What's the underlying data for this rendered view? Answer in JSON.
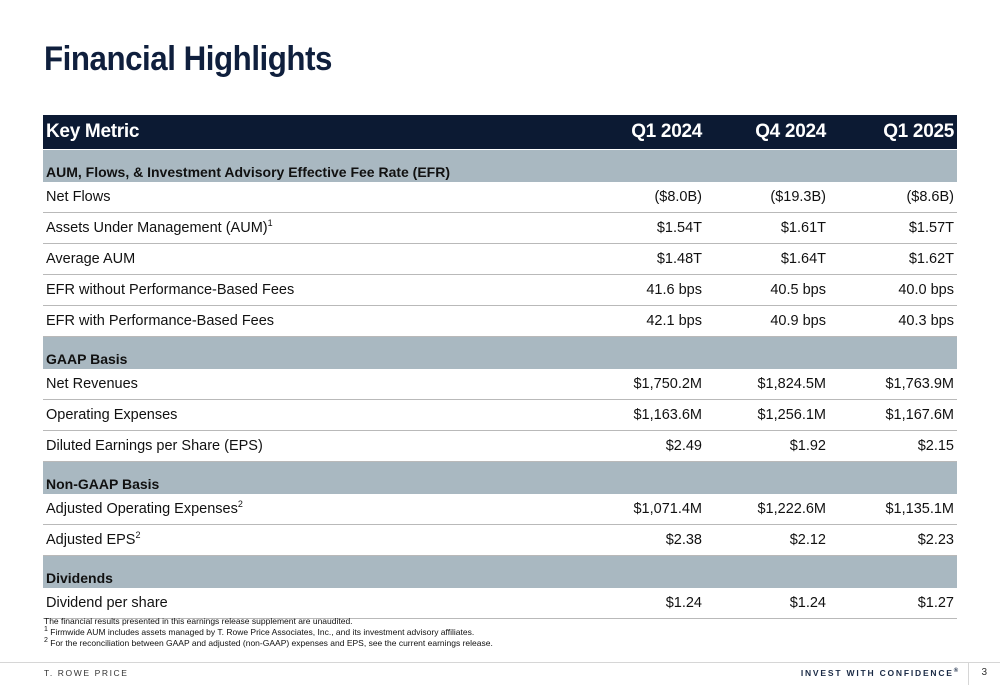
{
  "title": "Financial Highlights",
  "table": {
    "headers": [
      "Key Metric",
      "Q1 2024",
      "Q4 2024",
      "Q1 2025"
    ],
    "sections": [
      {
        "label": "AUM, Flows, & Investment Advisory Effective Fee Rate (EFR)",
        "rows": [
          {
            "label": "Net Flows",
            "sup": "",
            "values": [
              "($8.0B)",
              "($19.3B)",
              "($8.6B)"
            ]
          },
          {
            "label": "Assets Under Management (AUM)",
            "sup": "1",
            "values": [
              "$1.54T",
              "$1.61T",
              "$1.57T"
            ]
          },
          {
            "label": "Average AUM",
            "sup": "",
            "values": [
              "$1.48T",
              "$1.64T",
              "$1.62T"
            ]
          },
          {
            "label": "EFR without Performance-Based Fees",
            "sup": "",
            "values": [
              "41.6 bps",
              "40.5 bps",
              "40.0 bps"
            ]
          },
          {
            "label": "EFR with Performance-Based Fees",
            "sup": "",
            "values": [
              "42.1 bps",
              "40.9 bps",
              "40.3 bps"
            ]
          }
        ]
      },
      {
        "label": "GAAP Basis",
        "rows": [
          {
            "label": "Net Revenues",
            "sup": "",
            "values": [
              "$1,750.2M",
              "$1,824.5M",
              "$1,763.9M"
            ]
          },
          {
            "label": "Operating Expenses",
            "sup": "",
            "values": [
              "$1,163.6M",
              "$1,256.1M",
              "$1,167.6M"
            ]
          },
          {
            "label": "Diluted Earnings per Share (EPS)",
            "sup": "",
            "values": [
              "$2.49",
              "$1.92",
              "$2.15"
            ]
          }
        ]
      },
      {
        "label": "Non-GAAP Basis",
        "rows": [
          {
            "label": "Adjusted Operating Expenses",
            "sup": "2",
            "values": [
              "$1,071.4M",
              "$1,222.6M",
              "$1,135.1M"
            ]
          },
          {
            "label": "Adjusted EPS",
            "sup": "2",
            "values": [
              "$2.38",
              "$2.12",
              "$2.23"
            ]
          }
        ]
      },
      {
        "label": "Dividends",
        "rows": [
          {
            "label": "Dividend per share",
            "sup": "",
            "values": [
              "$1.24",
              "$1.24",
              "$1.27"
            ]
          }
        ]
      }
    ]
  },
  "notes": {
    "line1": "The financial results presented in this earnings release supplement are unaudited.",
    "line2_sup": "1",
    "line2": " Firmwide AUM includes assets managed by T. Rowe Price Associates, Inc., and its investment advisory affiliates.",
    "line3_sup": "2",
    "line3": " For the reconciliation between GAAP and adjusted (non-GAAP) expenses and EPS, see the current earnings release."
  },
  "footer": {
    "brand": "T. ROWE PRICE",
    "tagline": "INVEST WITH CONFIDENCE",
    "tagline_mark": "®",
    "page_number": "3"
  },
  "colors": {
    "header_bg": "#0c1a33",
    "section_bg": "#a9b8c1",
    "title": "#0f1f3d"
  }
}
